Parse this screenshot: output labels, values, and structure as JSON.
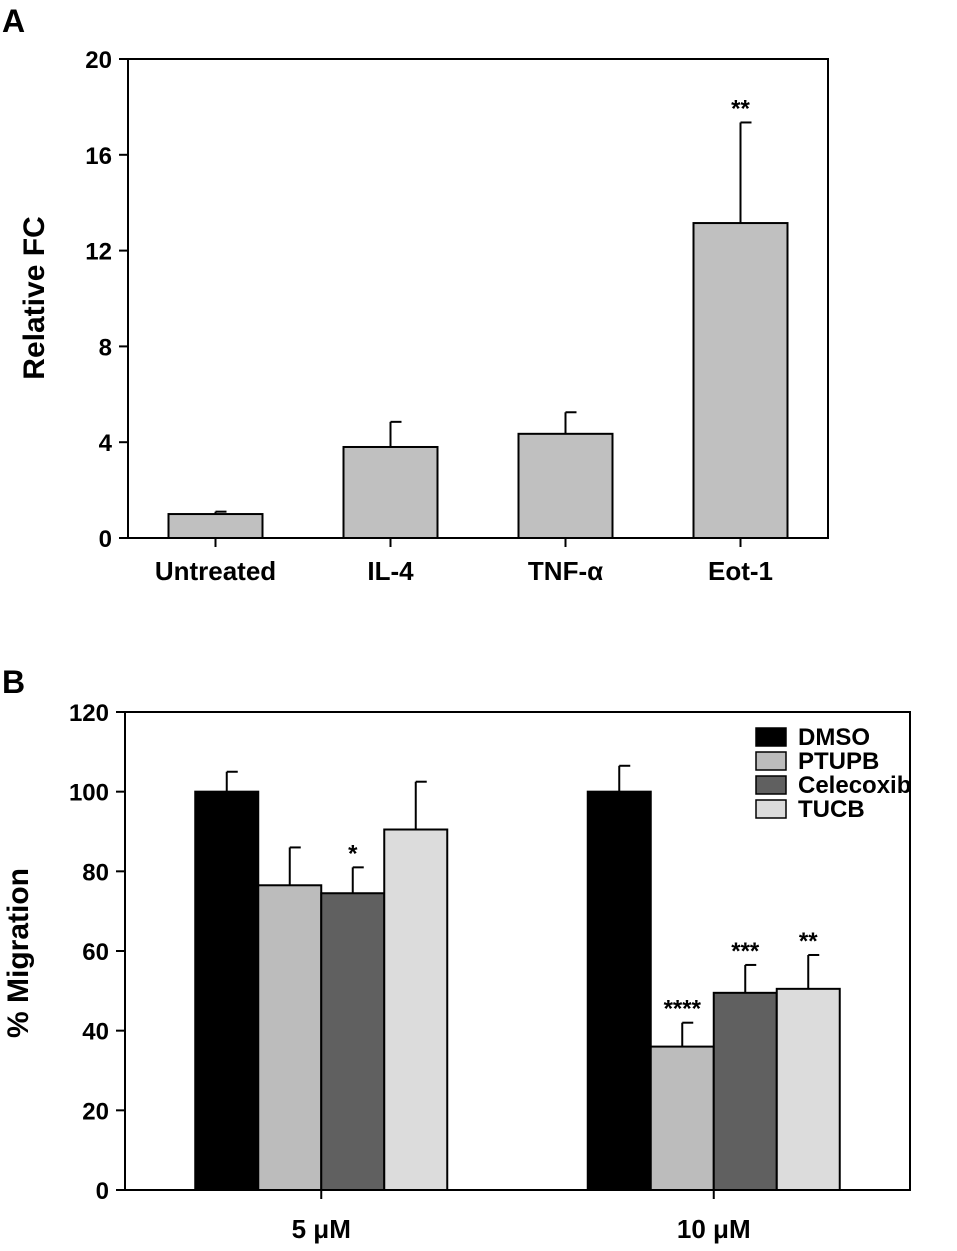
{
  "chart_data": [
    {
      "panel": "A",
      "type": "bar",
      "ylabel": "Relative FC",
      "xlabel": "",
      "ylim": [
        0,
        20
      ],
      "yticks": [
        0,
        4,
        8,
        12,
        16,
        20
      ],
      "tick_labels": [
        "0",
        "4",
        "8",
        "12",
        "16",
        "20"
      ],
      "categories": [
        "Untreated",
        "IL-4",
        "TNF-α",
        "Eot-1"
      ],
      "values": [
        1.0,
        3.8,
        4.35,
        13.15
      ],
      "errors": [
        0.1,
        1.05,
        0.9,
        4.2
      ],
      "annotations": [
        "",
        "",
        "",
        "**"
      ],
      "bar_color": "#c0c0c0"
    },
    {
      "panel": "B",
      "type": "bar",
      "ylabel": "% Migration",
      "xlabel": "",
      "ylim": [
        0,
        120
      ],
      "yticks": [
        0,
        20,
        40,
        60,
        80,
        100,
        120
      ],
      "tick_labels": [
        "0",
        "20",
        "40",
        "60",
        "80",
        "100",
        "120"
      ],
      "categories": [
        "5 μM",
        "10 μM"
      ],
      "series": [
        {
          "name": "DMSO",
          "color": "#000000",
          "values": [
            100,
            100
          ],
          "errors": [
            5,
            6.5
          ],
          "annotations": [
            "",
            ""
          ]
        },
        {
          "name": "PTUPB",
          "color": "#bcbcbc",
          "values": [
            76.5,
            36
          ],
          "errors": [
            9.5,
            6
          ],
          "annotations": [
            "",
            "****"
          ]
        },
        {
          "name": "Celecoxib",
          "color": "#606060",
          "values": [
            74.5,
            49.5
          ],
          "errors": [
            6.5,
            7
          ],
          "annotations": [
            "*",
            "***"
          ]
        },
        {
          "name": "TUCB",
          "color": "#dcdcdc",
          "values": [
            90.5,
            50.5
          ],
          "errors": [
            12,
            8.5
          ],
          "annotations": [
            "",
            "**"
          ]
        }
      ],
      "legend_position": "top-right"
    }
  ]
}
